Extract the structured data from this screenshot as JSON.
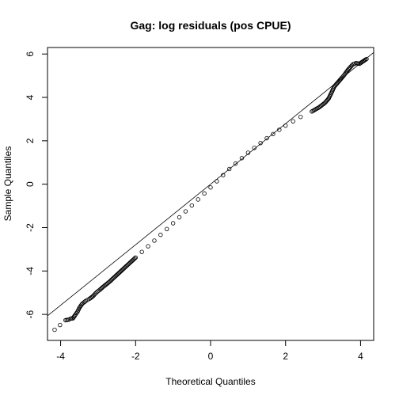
{
  "chart_data": {
    "type": "scatter",
    "subtype": "qq-plot",
    "title": "Gag: log residuals (pos CPUE)",
    "xlabel": "Theoretical Quantiles",
    "ylabel": "Sample Quantiles",
    "xlim": [
      -4.35,
      4.35
    ],
    "ylim": [
      -7.2,
      6.3
    ],
    "xticks": [
      -4,
      -2,
      0,
      2,
      4
    ],
    "xtick_labels": [
      "-4",
      "-2",
      "0",
      "2",
      "4"
    ],
    "yticks": [
      -6,
      -4,
      -2,
      0,
      2,
      4,
      6
    ],
    "ytick_labels": [
      "-6",
      "-4",
      "-2",
      "0",
      "2",
      "4",
      "6"
    ],
    "grid": false,
    "reference_line": {
      "intercept": 0.0,
      "slope": 1.395
    },
    "series": [
      {
        "marker": "open-circle",
        "color": "#000000",
        "points": [
          [
            -4.16,
            -6.71
          ],
          [
            -3.87,
            -6.27
          ],
          [
            -3.78,
            -6.24
          ],
          [
            -3.73,
            -6.19
          ],
          [
            -3.67,
            -6.18
          ],
          [
            -3.6,
            -6.0
          ],
          [
            -3.55,
            -5.88
          ],
          [
            -3.5,
            -5.7
          ],
          [
            -3.46,
            -5.6
          ],
          [
            -3.42,
            -5.5
          ],
          [
            -3.38,
            -5.45
          ],
          [
            -3.33,
            -5.38
          ],
          [
            -3.28,
            -5.33
          ],
          [
            -3.23,
            -5.28
          ],
          [
            -3.18,
            -5.22
          ],
          [
            -3.13,
            -5.15
          ],
          [
            -3.08,
            -5.05
          ],
          [
            -3.02,
            -4.95
          ],
          [
            -2.95,
            -4.86
          ],
          [
            -2.88,
            -4.75
          ],
          [
            -2.8,
            -4.64
          ],
          [
            -2.7,
            -4.5
          ],
          [
            -2.6,
            -4.34
          ],
          [
            -2.4,
            -4.02
          ],
          [
            -2.2,
            -3.7
          ],
          [
            -2.0,
            -3.38
          ],
          [
            -1.5,
            -2.6
          ],
          [
            -1.0,
            -1.8
          ],
          [
            -0.5,
            -0.98
          ],
          [
            0.0,
            -0.15
          ],
          [
            0.5,
            0.7
          ],
          [
            1.0,
            1.45
          ],
          [
            1.5,
            2.12
          ],
          [
            2.0,
            2.7
          ],
          [
            2.4,
            3.1
          ],
          [
            2.7,
            3.35
          ],
          [
            2.9,
            3.55
          ],
          [
            3.05,
            3.75
          ],
          [
            3.15,
            3.95
          ],
          [
            3.22,
            4.2
          ],
          [
            3.3,
            4.5
          ],
          [
            3.4,
            4.7
          ],
          [
            3.5,
            4.9
          ],
          [
            3.55,
            5.0
          ],
          [
            3.6,
            5.12
          ],
          [
            3.66,
            5.26
          ],
          [
            3.72,
            5.38
          ],
          [
            3.8,
            5.53
          ],
          [
            3.88,
            5.58
          ],
          [
            3.97,
            5.55
          ],
          [
            4.16,
            5.77
          ]
        ]
      }
    ]
  }
}
